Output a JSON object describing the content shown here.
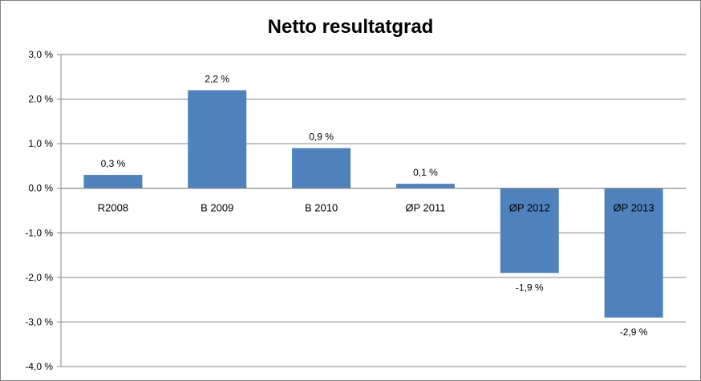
{
  "chart_data": {
    "type": "bar",
    "title": "Netto resultatgrad",
    "categories": [
      "R2008",
      "B 2009",
      "B 2010",
      "ØP 2011",
      "ØP 2012",
      "ØP 2013"
    ],
    "values": [
      0.3,
      2.2,
      0.9,
      0.1,
      -1.9,
      -2.9
    ],
    "data_labels": [
      "0,3 %",
      "2,2 %",
      "0,9 %",
      "0,1 %",
      "-1,9 %",
      "-2,9 %"
    ],
    "yticks": [
      3.0,
      2.0,
      1.0,
      0.0,
      -1.0,
      -2.0,
      -3.0,
      -4.0
    ],
    "ytick_labels": [
      "3,0 %",
      "2.0 %",
      "1,0 %",
      "0.0 %",
      "-1,0 %",
      "-2,0 %",
      "-3,0 %",
      "-4,0 %"
    ],
    "ylim": [
      -4.0,
      3.0
    ],
    "xlabel": "",
    "ylabel": "",
    "grid": true,
    "legend": "none",
    "bar_color": "#4f81bd",
    "grid_color": "#868686"
  }
}
